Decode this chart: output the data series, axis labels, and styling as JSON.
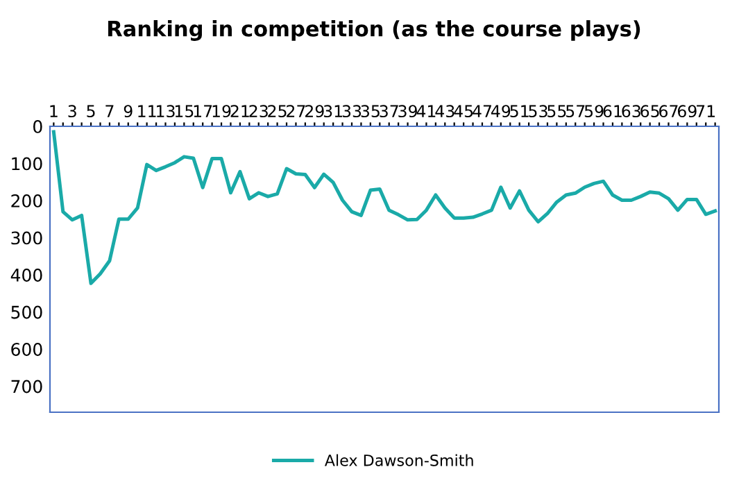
{
  "chart_data": {
    "type": "line",
    "title": "Ranking in competition (as the course plays)",
    "categories": [
      "1",
      null,
      "3",
      null,
      "5",
      null,
      "7",
      null,
      "9",
      null,
      "11",
      null,
      "13",
      null,
      "15",
      null,
      "17",
      null,
      "19",
      null,
      "21",
      null,
      "23",
      null,
      "25",
      null,
      "27",
      null,
      "29",
      null,
      "31",
      null,
      "33",
      null,
      "35",
      null,
      "37",
      null,
      "39",
      null,
      "41",
      null,
      "43",
      null,
      "45",
      null,
      "47",
      null,
      "49",
      null,
      "51",
      null,
      "53",
      null,
      "55",
      null,
      "57",
      null,
      "59",
      null,
      "61",
      null,
      "63",
      null,
      "65",
      null,
      "67",
      null,
      "69",
      null,
      "71",
      null
    ],
    "series": [
      {
        "name": "Alex Dawson-Smith",
        "color": "#1aaaa8",
        "values": [
          15,
          230,
          252,
          240,
          423,
          397,
          362,
          250,
          250,
          220,
          103,
          119,
          109,
          98,
          82,
          86,
          165,
          87,
          87,
          179,
          122,
          195,
          179,
          189,
          182,
          114,
          128,
          130,
          165,
          129,
          151,
          199,
          230,
          240,
          172,
          169,
          226,
          238,
          252,
          251,
          226,
          185,
          220,
          247,
          247,
          245,
          236,
          226,
          164,
          220,
          174,
          226,
          257,
          235,
          204,
          185,
          180,
          164,
          154,
          148,
          185,
          199,
          199,
          189,
          177,
          180,
          195,
          226,
          197,
          197,
          237,
          228
        ]
      }
    ],
    "ylim": [
      770,
      0
    ],
    "yticks": [
      0,
      100,
      200,
      300,
      400,
      500,
      600,
      700
    ],
    "grid": false,
    "legend": "bottom",
    "marker": "none",
    "line_style": "solid"
  }
}
